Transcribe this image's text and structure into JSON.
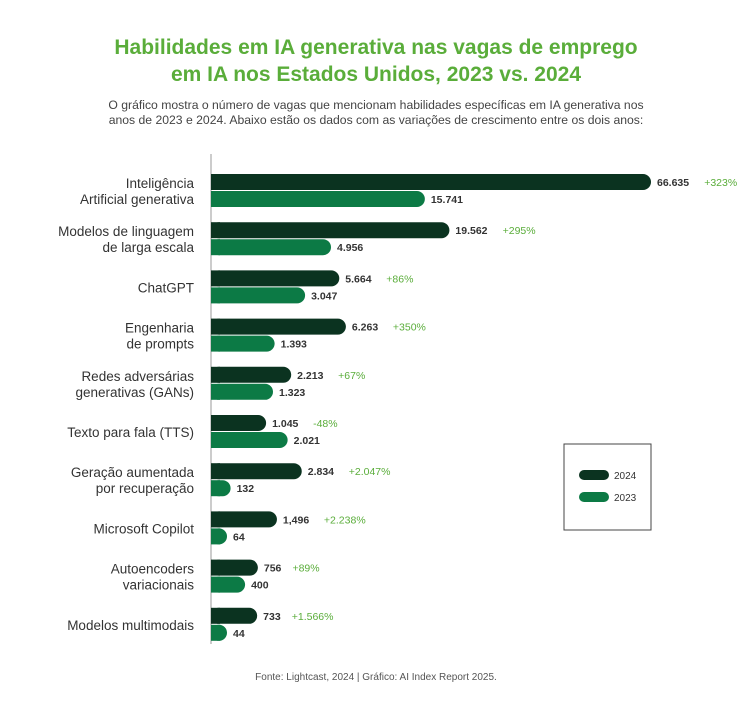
{
  "title": {
    "line1": "Habilidades em IA generativa nas vagas de emprego",
    "line2": "em IA nos Estados Unidos, 2023 vs. 2024"
  },
  "subtitle": {
    "line1": "O gráfico mostra o número de vagas que mencionam habilidades específicas em IA generativa nos",
    "line2": "anos de 2023 e 2024. Abaixo estão os dados com as variações de crescimento entre os dois anos:"
  },
  "footer": "Fonte: Lightcast, 2024 | Gráfico: AI Index Report 2025.",
  "colors": {
    "series_2024": "#0b3320",
    "series_2023": "#0c7a45",
    "growth": "#5aad3a",
    "axis": "#999999"
  },
  "chart_data": {
    "type": "bar",
    "orientation": "horizontal",
    "categories": [
      [
        "Inteligência",
        "Artificial generativa"
      ],
      [
        "Modelos de linguagem",
        "de larga escala"
      ],
      [
        "ChatGPT"
      ],
      [
        "Engenharia",
        "de prompts"
      ],
      [
        "Redes adversárias",
        "generativas (GANs)"
      ],
      [
        "Texto para fala (TTS)"
      ],
      [
        "Geração aumentada",
        "por recuperação"
      ],
      [
        "Microsoft Copilot"
      ],
      [
        "Autoencoders",
        "variacionais"
      ],
      [
        "Modelos multimodais"
      ]
    ],
    "series": [
      {
        "name": "2024",
        "values": [
          66635,
          19562,
          5664,
          6263,
          2213,
          1045,
          2834,
          1496,
          756,
          733
        ],
        "labels": [
          "66.635",
          "19.562",
          "5.664",
          "6.263",
          "2.213",
          "1.045",
          "2.834",
          "1,496",
          "756",
          "733"
        ]
      },
      {
        "name": "2023",
        "values": [
          15741,
          4956,
          3047,
          1393,
          1323,
          2021,
          132,
          64,
          400,
          44
        ],
        "labels": [
          "15.741",
          "4.956",
          "3.047",
          "1.393",
          "1.323",
          "2.021",
          "132",
          "64",
          "400",
          "44"
        ]
      }
    ],
    "growth": [
      "+323%",
      "+295%",
      "+86%",
      "+350%",
      "+67%",
      "-48%",
      "+2.047%",
      "+2.238%",
      "+89%",
      "+1.566%"
    ],
    "legend": [
      "2024",
      "2023"
    ],
    "legend_position": "right"
  }
}
